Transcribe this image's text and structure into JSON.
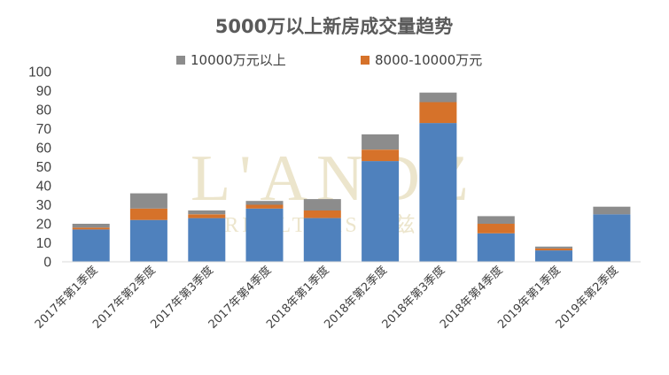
{
  "chart_data": {
    "type": "bar",
    "stacked": true,
    "title": "5000万以上新房成交量趋势",
    "categories": [
      "2017年第1季度",
      "2017年第2季度",
      "2017年第3季度",
      "2017年第4季度",
      "2018年第1季度",
      "2018年第2季度",
      "2018年第3季度",
      "2018年第4季度",
      "2019年第1季度",
      "2019年第2季度"
    ],
    "series": [
      {
        "name": "",
        "color": "#4f81bd",
        "values": [
          17,
          22,
          23,
          28,
          23,
          53,
          73,
          15,
          6,
          25
        ]
      },
      {
        "name": "8000-10000万元",
        "color": "#d6722a",
        "values": [
          1,
          6,
          2,
          2,
          4,
          6,
          11,
          5,
          1,
          0
        ]
      },
      {
        "name": "10000万元以上",
        "color": "#8c8c8c",
        "values": [
          2,
          8,
          2,
          2,
          6,
          8,
          5,
          4,
          1,
          4
        ]
      }
    ],
    "legend": [
      "10000万元以上",
      "8000-10000万元"
    ],
    "legend_position": "top",
    "ylim": [
      0,
      100
    ],
    "yticks": [
      0,
      10,
      20,
      30,
      40,
      50,
      60,
      70,
      80,
      90,
      100
    ],
    "xlabel": "",
    "ylabel": "",
    "grid": false
  },
  "watermark": {
    "main": "L'ANDZ",
    "sub": "REALTORS 丽兹行"
  }
}
